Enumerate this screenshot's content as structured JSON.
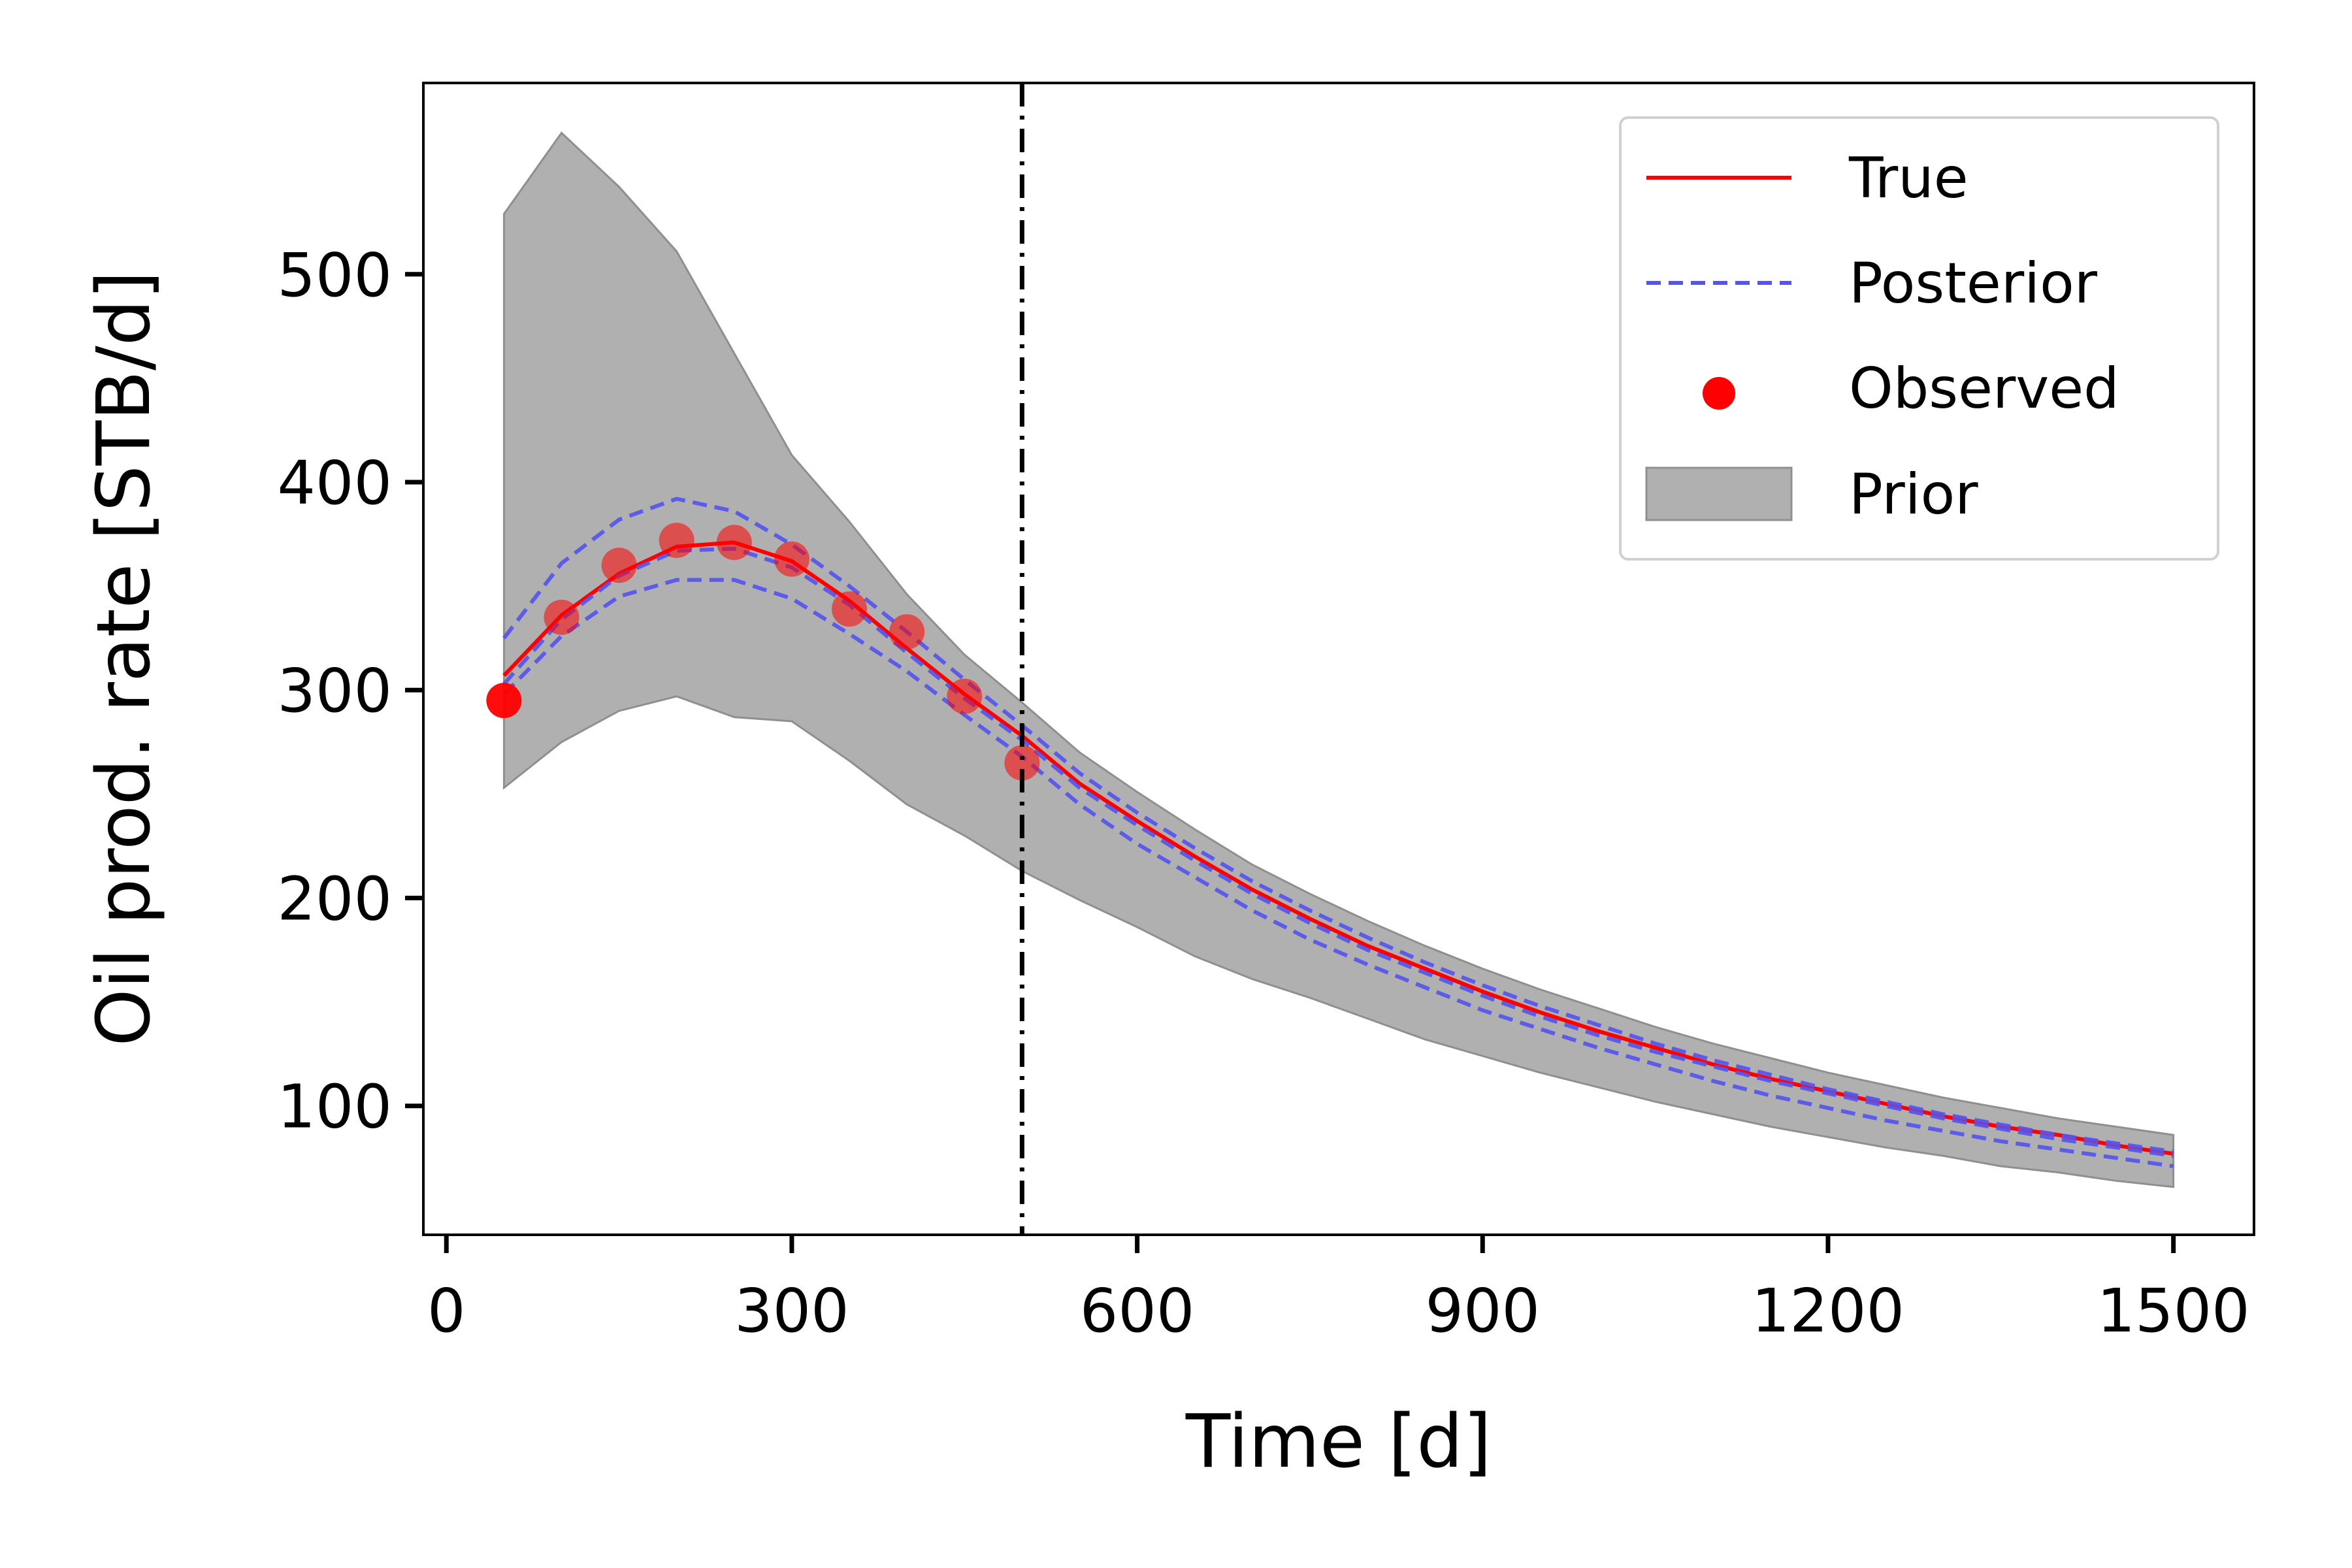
{
  "chart_data": {
    "type": "line",
    "title": "",
    "xlabel": "Time [d]",
    "ylabel": "Oil prod. rate [STB/d]",
    "xlim": [
      -20,
      1570
    ],
    "ylim": [
      38,
      592
    ],
    "xticks": [
      0,
      300,
      600,
      900,
      1200,
      1500
    ],
    "yticks": [
      100,
      200,
      300,
      400,
      500
    ],
    "xtick_labels": [
      "0",
      "300",
      "600",
      "900",
      "1200",
      "1500"
    ],
    "ytick_labels": [
      "100",
      "200",
      "300",
      "400",
      "500"
    ],
    "grid": false,
    "legend_position": "top-right",
    "vertical_line": {
      "x": 500,
      "style": "dash-dot",
      "color": "#000000"
    },
    "series": [
      {
        "name": "True",
        "kind": "line",
        "color": "#ff0000",
        "x": [
          50,
          100,
          150,
          200,
          250,
          300,
          350,
          400,
          450,
          500,
          550,
          600,
          650,
          700,
          750,
          800,
          850,
          900,
          950,
          1000,
          1050,
          1100,
          1150,
          1200,
          1250,
          1300,
          1350,
          1400,
          1450,
          1500
        ],
        "y": [
          307,
          336,
          356,
          369,
          371,
          362,
          343,
          320,
          298,
          278,
          255,
          237,
          220,
          204,
          190,
          177,
          166,
          155,
          145,
          136,
          128,
          120,
          113,
          107,
          101,
          95,
          90,
          86,
          81,
          77
        ]
      },
      {
        "name": "Posterior",
        "kind": "dashed",
        "color": "#5555ee",
        "upper": {
          "x": [
            50,
            100,
            150,
            200,
            250,
            300,
            350,
            400,
            450,
            500,
            550,
            600,
            650,
            700,
            750,
            800,
            850,
            900,
            950,
            1000,
            1050,
            1100,
            1150,
            1200,
            1250,
            1300,
            1350,
            1400,
            1450,
            1500
          ],
          "y": [
            325,
            361,
            382,
            392,
            386,
            370,
            350,
            328,
            305,
            283,
            260,
            241,
            224,
            208,
            194,
            181,
            169,
            158,
            148,
            139,
            130,
            122,
            115,
            108,
            102,
            96,
            91,
            86,
            82,
            78
          ]
        },
        "middle": {
          "x": [
            50,
            100,
            150,
            200,
            250,
            300,
            350,
            400,
            450,
            500,
            550,
            600,
            650,
            700,
            750,
            800,
            850,
            900,
            950,
            1000,
            1050,
            1100,
            1150,
            1200,
            1250,
            1300,
            1350,
            1400,
            1450,
            1500
          ],
          "y": [
            303,
            334,
            355,
            367,
            368,
            359,
            341,
            318,
            296,
            276,
            253,
            235,
            218,
            202,
            188,
            175,
            164,
            153,
            143,
            134,
            126,
            119,
            112,
            106,
            100,
            94,
            89,
            84,
            80,
            76
          ]
        },
        "lower": {
          "x": [
            50,
            100,
            150,
            200,
            250,
            300,
            350,
            400,
            450,
            500,
            550,
            600,
            650,
            700,
            750,
            800,
            850,
            900,
            950,
            1000,
            1050,
            1100,
            1150,
            1200,
            1250,
            1300,
            1350,
            1400,
            1450,
            1500
          ],
          "y": [
            298,
            326,
            345,
            353,
            353,
            344,
            327,
            309,
            288,
            268,
            245,
            226,
            210,
            194,
            180,
            168,
            157,
            146,
            137,
            128,
            120,
            112,
            105,
            99,
            93,
            88,
            83,
            79,
            75,
            71
          ]
        }
      },
      {
        "name": "Observed",
        "kind": "scatter",
        "color": "#ff0000",
        "x": [
          50,
          100,
          150,
          200,
          250,
          300,
          350,
          400,
          450,
          500
        ],
        "y": [
          295,
          335,
          360,
          372,
          371,
          363,
          339,
          328,
          297,
          265
        ]
      },
      {
        "name": "Prior",
        "kind": "band",
        "color": "#b0b0b0",
        "x": [
          50,
          100,
          150,
          200,
          250,
          300,
          350,
          400,
          450,
          500,
          550,
          600,
          650,
          700,
          750,
          800,
          850,
          900,
          950,
          1000,
          1050,
          1100,
          1150,
          1200,
          1250,
          1300,
          1350,
          1400,
          1450,
          1500
        ],
        "upper": [
          529,
          568,
          542,
          511,
          462,
          413,
          381,
          346,
          317,
          294,
          270,
          251,
          233,
          216,
          202,
          189,
          177,
          166,
          156,
          147,
          138,
          130,
          123,
          116,
          110,
          104,
          99,
          94,
          90,
          86
        ],
        "lower": [
          253,
          275,
          290,
          297,
          287,
          285,
          266,
          245,
          230,
          213,
          199,
          186,
          172,
          161,
          152,
          142,
          132,
          124,
          116,
          109,
          102,
          96,
          90,
          85,
          80,
          76,
          71,
          68,
          64,
          61
        ]
      }
    ]
  }
}
